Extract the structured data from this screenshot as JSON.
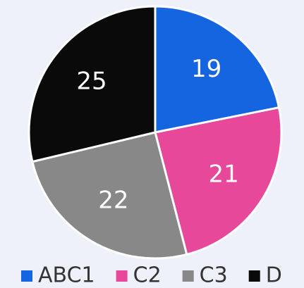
{
  "chart_data": {
    "type": "pie",
    "categories": [
      "ABC1",
      "C2",
      "C3",
      "D"
    ],
    "values": [
      19,
      21,
      22,
      25
    ],
    "colors": [
      "#1565e0",
      "#e8489a",
      "#888888",
      "#0a0a0a"
    ],
    "legend": "bottom"
  }
}
